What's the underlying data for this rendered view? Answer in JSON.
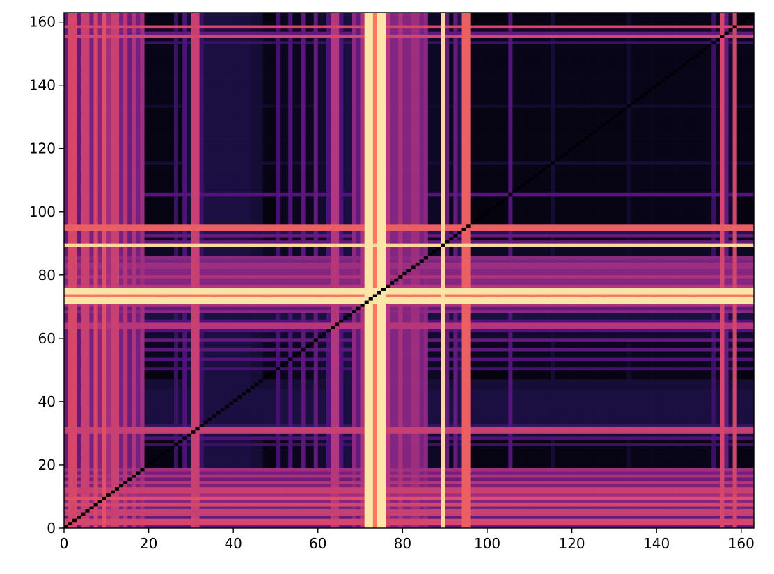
{
  "chart_data": {
    "type": "heatmap",
    "title": "",
    "xlabel": "",
    "ylabel": "",
    "xlim": [
      0,
      163
    ],
    "ylim": [
      0,
      163
    ],
    "n": 163,
    "colormap": "magma",
    "colormap_stops": [
      "#000004",
      "#1c1044",
      "#4f127b",
      "#812581",
      "#b5367a",
      "#e55064",
      "#fb8761",
      "#fec287",
      "#fcfdbf"
    ],
    "diagonal_value": 0,
    "x_ticks": [
      0,
      20,
      40,
      60,
      80,
      100,
      120,
      140,
      160
    ],
    "y_ticks": [
      0,
      20,
      40,
      60,
      80,
      100,
      120,
      140,
      160
    ],
    "profile_segments": [
      [
        0,
        1,
        0.3
      ],
      [
        1,
        3,
        0.58
      ],
      [
        3,
        4,
        0.3
      ],
      [
        4,
        6,
        0.55
      ],
      [
        6,
        7,
        0.35
      ],
      [
        7,
        8,
        0.58
      ],
      [
        8,
        9,
        0.38
      ],
      [
        9,
        10,
        0.62
      ],
      [
        10,
        11,
        0.45
      ],
      [
        11,
        13,
        0.55
      ],
      [
        13,
        14,
        0.35
      ],
      [
        14,
        15,
        0.5
      ],
      [
        15,
        16,
        0.32
      ],
      [
        16,
        17,
        0.48
      ],
      [
        17,
        18,
        0.34
      ],
      [
        18,
        19,
        0.45
      ],
      [
        19,
        26,
        0.03
      ],
      [
        26,
        27,
        0.2
      ],
      [
        27,
        28,
        0.03
      ],
      [
        28,
        29,
        0.25
      ],
      [
        29,
        30,
        0.1
      ],
      [
        30,
        32,
        0.55
      ],
      [
        32,
        33,
        0.2
      ],
      [
        33,
        44,
        0.12
      ],
      [
        44,
        47,
        0.1
      ],
      [
        47,
        50,
        0.02
      ],
      [
        50,
        51,
        0.22
      ],
      [
        51,
        53,
        0.05
      ],
      [
        53,
        54,
        0.25
      ],
      [
        54,
        56,
        0.05
      ],
      [
        56,
        57,
        0.28
      ],
      [
        57,
        59,
        0.05
      ],
      [
        59,
        60,
        0.3
      ],
      [
        60,
        62,
        0.08
      ],
      [
        62,
        63,
        0.25
      ],
      [
        63,
        65,
        0.5
      ],
      [
        65,
        66,
        0.25
      ],
      [
        66,
        68,
        0.12
      ],
      [
        68,
        69,
        0.4
      ],
      [
        69,
        70,
        0.3
      ],
      [
        70,
        71,
        0.48
      ],
      [
        71,
        73,
        0.95
      ],
      [
        73,
        74,
        0.72
      ],
      [
        74,
        76,
        0.95
      ],
      [
        76,
        77,
        0.5
      ],
      [
        77,
        79,
        0.38
      ],
      [
        79,
        80,
        0.48
      ],
      [
        80,
        82,
        0.38
      ],
      [
        82,
        84,
        0.44
      ],
      [
        84,
        85,
        0.36
      ],
      [
        85,
        86,
        0.4
      ],
      [
        86,
        89,
        0.06
      ],
      [
        89,
        90,
        0.92
      ],
      [
        90,
        91,
        0.3
      ],
      [
        91,
        92,
        0.05
      ],
      [
        92,
        93,
        0.3
      ],
      [
        93,
        94,
        0.15
      ],
      [
        94,
        96,
        0.66
      ],
      [
        96,
        104,
        0.02
      ],
      [
        104,
        105,
        0.03
      ],
      [
        105,
        106,
        0.26
      ],
      [
        106,
        115,
        0.03
      ],
      [
        115,
        116,
        0.1
      ],
      [
        116,
        133,
        0.03
      ],
      [
        133,
        134,
        0.08
      ],
      [
        134,
        153,
        0.04
      ],
      [
        153,
        154,
        0.2
      ],
      [
        154,
        155,
        0.05
      ],
      [
        155,
        156,
        0.58
      ],
      [
        156,
        157,
        0.3
      ],
      [
        157,
        158,
        0.08
      ],
      [
        158,
        159,
        0.58
      ],
      [
        159,
        160,
        0.03
      ],
      [
        160,
        163,
        0.02
      ]
    ]
  }
}
